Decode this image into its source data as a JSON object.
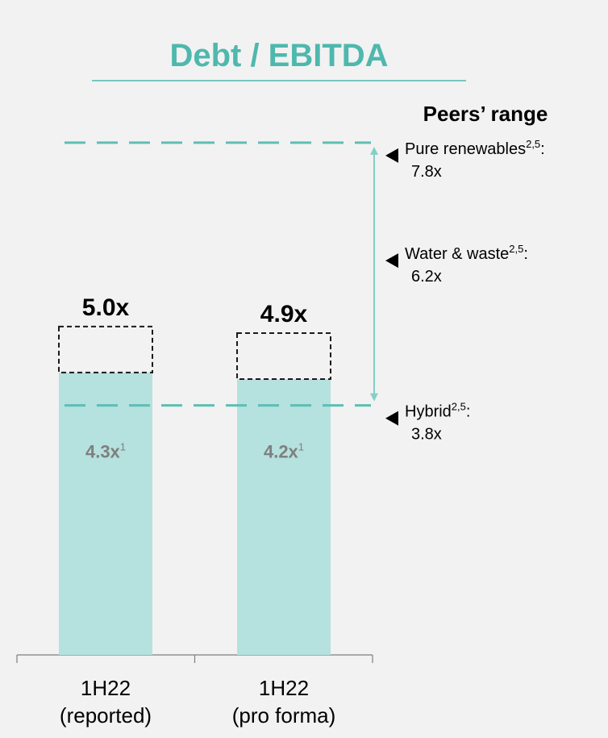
{
  "chart_data": {
    "type": "bar",
    "title": "Debt / EBITDA",
    "categories": [
      [
        "1H22",
        "(reported)"
      ],
      [
        "1H22",
        "(pro forma)"
      ]
    ],
    "series": [
      {
        "values": [
          4.3,
          4.2
        ]
      },
      {
        "values": [
          5.0,
          4.9
        ]
      }
    ],
    "bar_labels": [
      "4.3x",
      "4.2x"
    ],
    "bar_label_superscript": "1",
    "total_labels": [
      "5.0x",
      "4.9x"
    ],
    "ylim": [
      0,
      8.4
    ],
    "grid": false,
    "peers": {
      "title": "Peers’ range",
      "items": [
        {
          "name": "Pure renewables",
          "sup": "2,5",
          "suffix": ":",
          "value_label": "7.8x",
          "value": 7.8,
          "dashed_line": true
        },
        {
          "name": "Water & waste",
          "sup": "2,5",
          "suffix": ":",
          "value_label": "6.2x",
          "value": 6.2,
          "dashed_line": false
        },
        {
          "name": "Hybrid",
          "sup": "2,5",
          "suffix": ":",
          "value_label": "3.8x",
          "value": 3.8,
          "dashed_line": true
        }
      ]
    },
    "colors": {
      "title": "#4fb8ad",
      "bar_fill": "#b5e1de",
      "dashed_box": "#1a1a1a",
      "peer_line": "#5cbfb4",
      "range_arrow": "#84cfc7",
      "bar_label": "#7f7f7f",
      "axis": "#7f7f7f",
      "text": "#000000"
    }
  }
}
